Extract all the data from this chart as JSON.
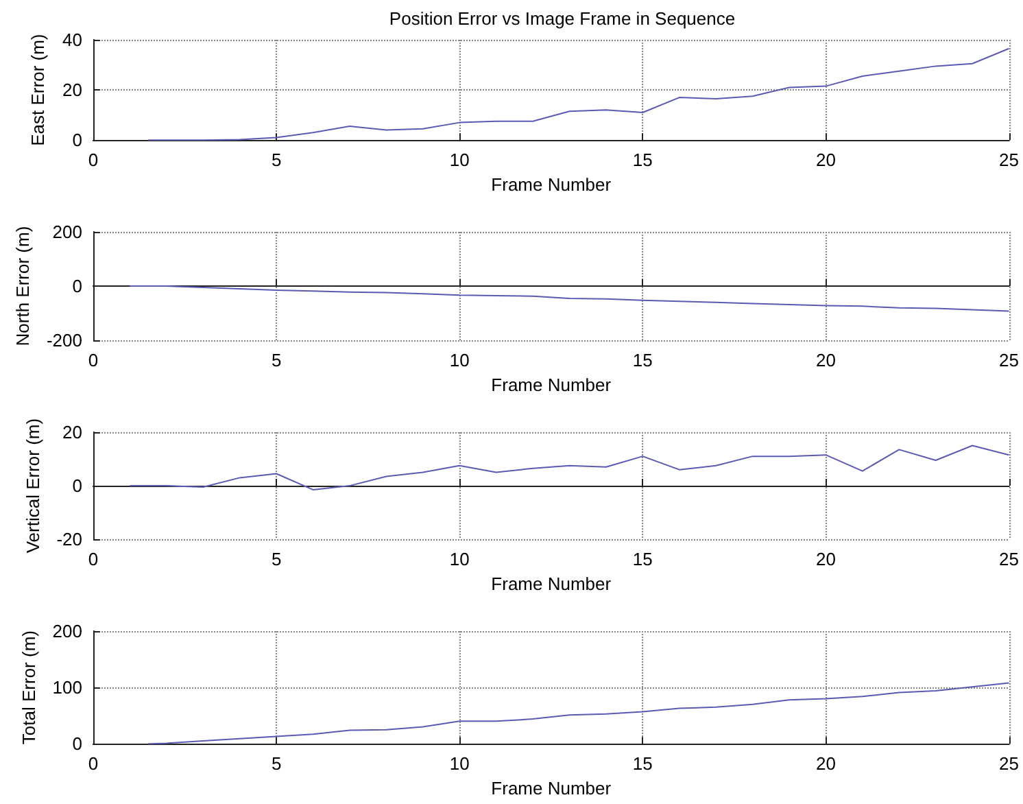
{
  "chart_data": [
    {
      "type": "line",
      "title": "Position Error vs Image Frame in Sequence",
      "xlabel": "Frame Number",
      "ylabel": "East Error (m)",
      "xlim": [
        0,
        25
      ],
      "xticks": [
        0,
        5,
        10,
        15,
        20,
        25
      ],
      "ylim": [
        0,
        40
      ],
      "yticks": [
        0,
        20,
        40
      ],
      "grid": true,
      "marker": "none",
      "line_style": "solid",
      "series": [
        {
          "color": "#5a5ab4",
          "x": [
            1.5,
            2,
            3,
            4,
            5,
            6,
            7,
            8,
            9,
            10,
            11,
            12,
            13,
            14,
            15,
            16,
            17,
            18,
            19,
            20,
            21,
            22,
            23,
            24,
            25
          ],
          "values": [
            0,
            0,
            0,
            0.2,
            1,
            3,
            5.5,
            4,
            4.5,
            7,
            7.5,
            7.5,
            11.5,
            12,
            11,
            17,
            16.5,
            17.5,
            21,
            21.5,
            25.5,
            27.5,
            29.5,
            30.5,
            36.5
          ]
        }
      ]
    },
    {
      "type": "line",
      "xlabel": "Frame Number",
      "ylabel": "North Error (m)",
      "xlim": [
        0,
        25
      ],
      "xticks": [
        0,
        5,
        10,
        15,
        20,
        25
      ],
      "ylim": [
        -200,
        200
      ],
      "yticks": [
        -200,
        0,
        200
      ],
      "grid": true,
      "marker": "none",
      "line_style": "solid",
      "series": [
        {
          "color": "#5a5ab4",
          "x": [
            1,
            2,
            3,
            4,
            5,
            6,
            7,
            8,
            9,
            10,
            11,
            12,
            13,
            14,
            15,
            16,
            17,
            18,
            19,
            20,
            21,
            22,
            23,
            24,
            25
          ],
          "values": [
            0,
            0,
            -5,
            -10,
            -15,
            -18,
            -22,
            -24,
            -28,
            -33,
            -35,
            -37,
            -45,
            -47,
            -52,
            -56,
            -60,
            -64,
            -68,
            -72,
            -74,
            -80,
            -82,
            -87,
            -92
          ]
        }
      ]
    },
    {
      "type": "line",
      "xlabel": "Frame Number",
      "ylabel": "Vertical Error (m)",
      "xlim": [
        0,
        25
      ],
      "xticks": [
        0,
        5,
        10,
        15,
        20,
        25
      ],
      "ylim": [
        -20,
        20
      ],
      "yticks": [
        -20,
        0,
        20
      ],
      "grid": true,
      "marker": "none",
      "line_style": "solid",
      "series": [
        {
          "color": "#5a5ab4",
          "x": [
            1,
            2,
            3,
            4,
            5,
            6,
            7,
            8,
            9,
            10,
            11,
            12,
            13,
            14,
            15,
            16,
            17,
            18,
            19,
            20,
            21,
            22,
            23,
            24,
            25
          ],
          "values": [
            0,
            0,
            -0.5,
            3,
            4.5,
            -1.5,
            0,
            3.5,
            5,
            7.5,
            5,
            6.5,
            7.5,
            7,
            11,
            6,
            7.5,
            11,
            11,
            11.5,
            5.5,
            13.5,
            9.5,
            15,
            11.5
          ]
        }
      ]
    },
    {
      "type": "line",
      "xlabel": "Frame Number",
      "ylabel": "Total Error (m)",
      "xlim": [
        0,
        25
      ],
      "xticks": [
        0,
        5,
        10,
        15,
        20,
        25
      ],
      "ylim": [
        0,
        200
      ],
      "yticks": [
        0,
        100,
        200
      ],
      "grid": true,
      "marker": "none",
      "line_style": "solid",
      "series": [
        {
          "color": "#5a5ab4",
          "x": [
            1.5,
            2,
            3,
            4,
            5,
            6,
            7,
            8,
            9,
            10,
            11,
            12,
            13,
            14,
            15,
            16,
            17,
            18,
            19,
            20,
            21,
            22,
            23,
            24,
            25
          ],
          "values": [
            0,
            1,
            5,
            9,
            13,
            17,
            24,
            25,
            30,
            40,
            40,
            44,
            51,
            53,
            57,
            63,
            65,
            70,
            78,
            80,
            84,
            91,
            94,
            101,
            108
          ]
        }
      ]
    }
  ]
}
